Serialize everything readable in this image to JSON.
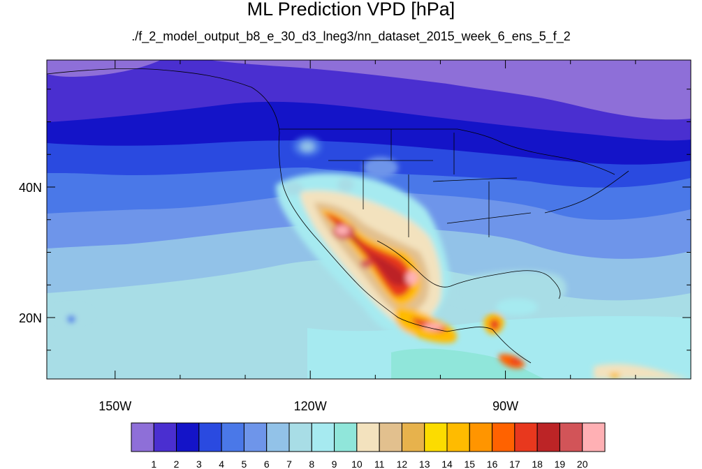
{
  "title": "ML Prediction VPD [hPa]",
  "subtitle": "./f_2_model_output_b8_e_30_d3_lneg3/nn_dataset_2015_week_6_ens_5_f_2",
  "axes": {
    "lon_ticks": [
      {
        "value": -150,
        "label": "150W"
      },
      {
        "value": -120,
        "label": "120W"
      },
      {
        "value": -90,
        "label": "90W"
      }
    ],
    "lat_ticks": [
      {
        "value": 40,
        "label": "40N"
      },
      {
        "value": 20,
        "label": "20N"
      }
    ]
  },
  "colorbar": {
    "labels": [
      "1",
      "2",
      "3",
      "4",
      "5",
      "6",
      "7",
      "8",
      "9",
      "10",
      "11",
      "12",
      "13",
      "14",
      "15",
      "16",
      "17",
      "18",
      "19",
      "20"
    ],
    "colors": [
      "#8e6fd8",
      "#4a2fd0",
      "#1414c8",
      "#2a4ae0",
      "#4a78e8",
      "#6e95ea",
      "#92c2e8",
      "#a8dde6",
      "#a6eaf0",
      "#90e6da",
      "#f3e2be",
      "#e2c08e",
      "#e7b24c",
      "#fcdc00",
      "#ffbb00",
      "#ff9500",
      "#ff6200",
      "#e8381e",
      "#bc2426",
      "#d25458",
      "#ffb0b4"
    ]
  }
}
